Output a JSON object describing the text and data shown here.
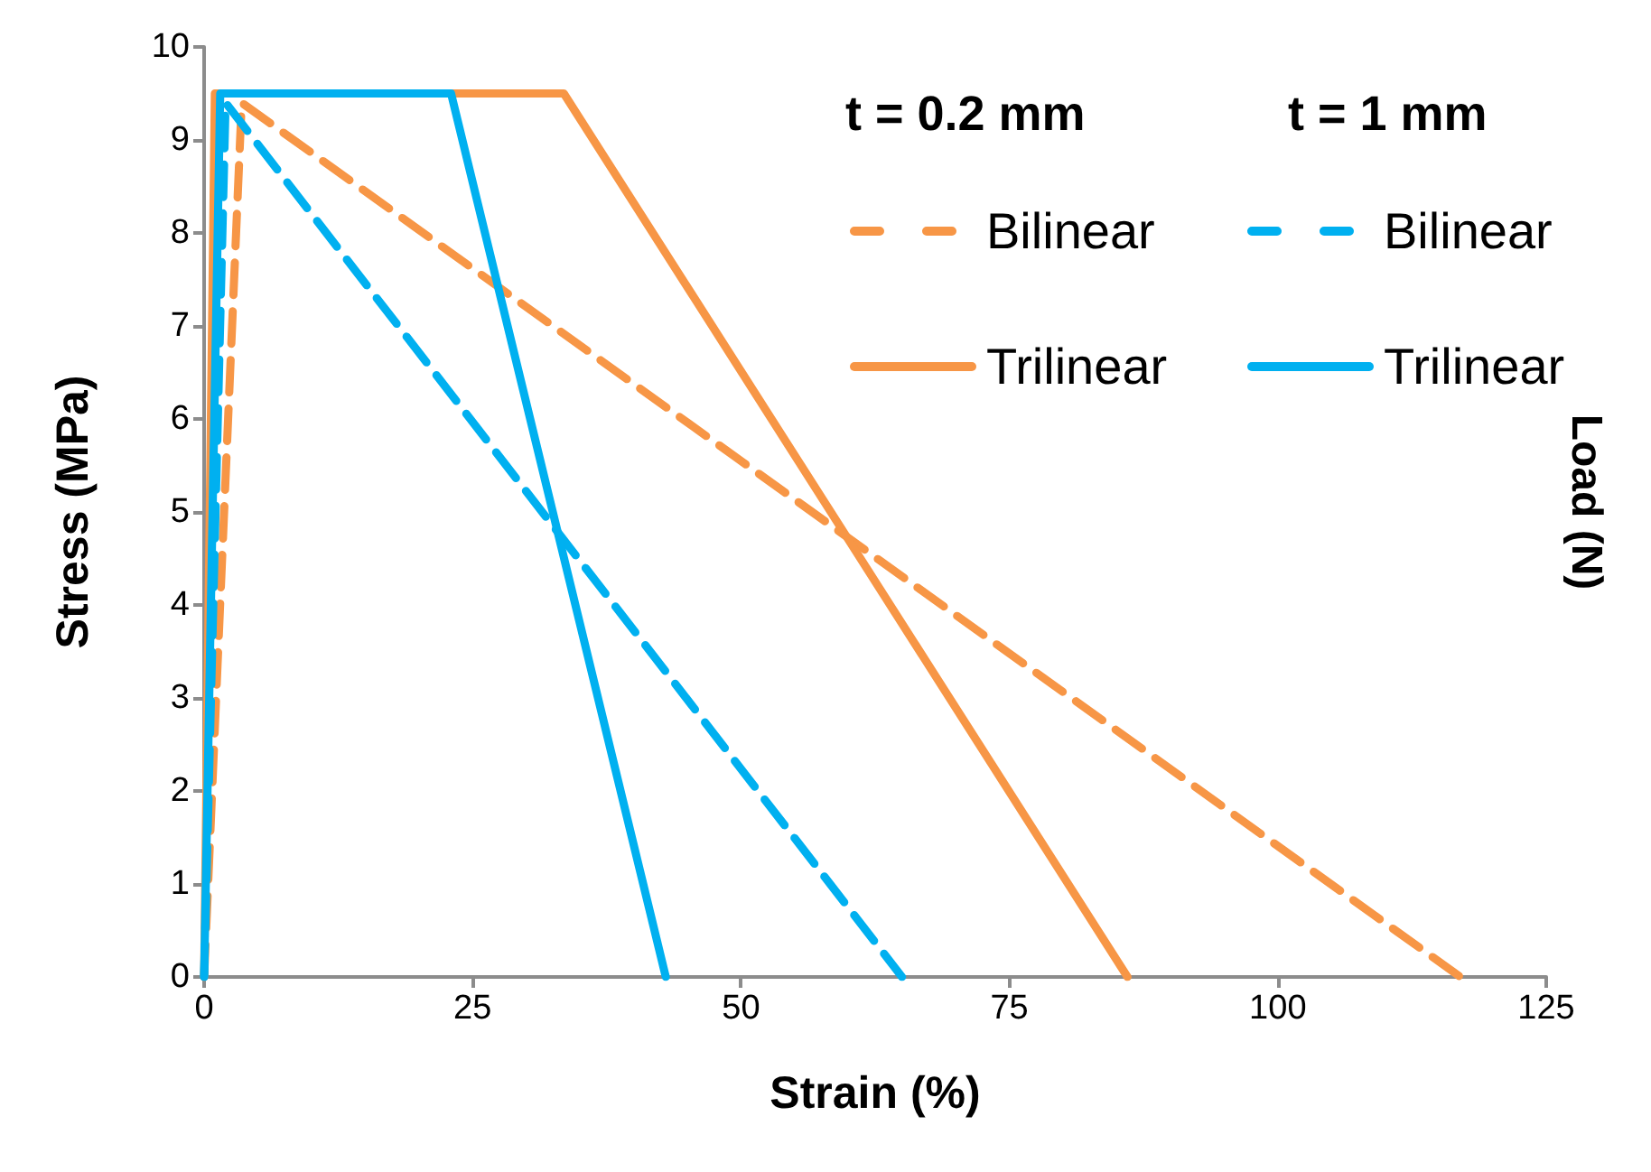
{
  "chart_data": {
    "type": "line",
    "xlabel": "Strain (%)",
    "ylabel": "Stress (MPa)",
    "y2label": "Load (N)",
    "xlim": [
      0,
      125
    ],
    "xticks": [
      0,
      25,
      50,
      75,
      100,
      125
    ],
    "ylim": [
      0,
      10
    ],
    "yticks": [
      0,
      1,
      2,
      3,
      4,
      5,
      6,
      7,
      8,
      9,
      10
    ],
    "grid": false,
    "legend": "top right",
    "marker": "none",
    "annotations": [
      "t = 0.2 mm",
      "t = 1 mm"
    ],
    "series": [
      {
        "name": "Bilinear",
        "color": "#f79646",
        "line_style": "dashed",
        "x": [
          0,
          3.5,
          117
        ],
        "values": [
          0,
          9.4,
          0
        ]
      },
      {
        "name": "Trilinear",
        "color": "#f79646",
        "line_style": "solid",
        "x": [
          0,
          1,
          33.5,
          86
        ],
        "values": [
          0,
          9.5,
          9.5,
          0
        ]
      },
      {
        "name": "Bilinear",
        "color": "#00b0f0",
        "line_style": "dashed",
        "x": [
          0,
          2,
          65
        ],
        "values": [
          0,
          9.4,
          0
        ]
      },
      {
        "name": "Trilinear",
        "color": "#00b0f0",
        "line_style": "solid",
        "x": [
          0,
          1.5,
          23,
          43
        ],
        "values": [
          0,
          9.5,
          9.5,
          0
        ]
      }
    ]
  }
}
